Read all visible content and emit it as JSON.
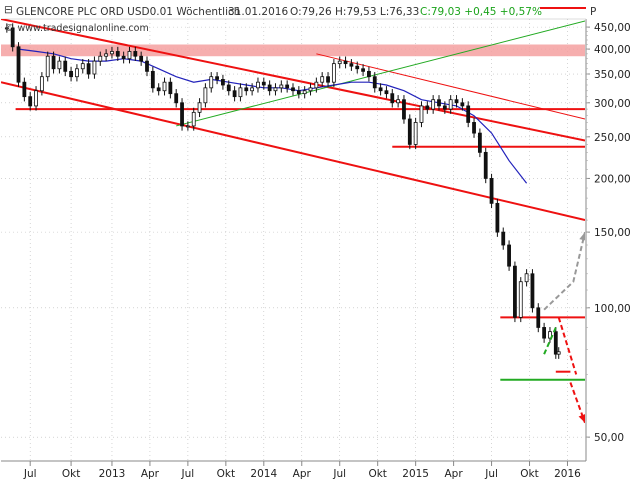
{
  "header": {
    "title": "GLENCORE PLC ORD USD0.01 Wöchentlich",
    "date": "31.01.2016",
    "ohlc": "O:79,26 H:79,53 L:76,33",
    "close_change": "C:79,03 +0,45 +0,57%",
    "scale_badge": "P"
  },
  "watermark": "© www.tradesignalonline.com",
  "colors": {
    "price": "#111111",
    "ma": "#2222bb",
    "trend_red": "#ee1111",
    "trend_green": "#22aa22",
    "band": "#f4a0a0",
    "grid": "#bbbbbb",
    "projection_grey": "#999999"
  },
  "chart_data": {
    "type": "candlestick",
    "scale": "log",
    "ylim": [
      44,
      470
    ],
    "y_ticks": [
      {
        "value": 450,
        "label": "450,00"
      },
      {
        "value": 400,
        "label": "400,00"
      },
      {
        "value": 350,
        "label": "350,00"
      },
      {
        "value": 300,
        "label": "300,00"
      },
      {
        "value": 250,
        "label": "250,00"
      },
      {
        "value": 200,
        "label": "200,00"
      },
      {
        "value": 150,
        "label": "150,00"
      },
      {
        "value": 100,
        "label": "100,00"
      },
      {
        "value": 50,
        "label": "50,00"
      }
    ],
    "x_ticks": [
      "Jul",
      "Okt",
      "2013",
      "Apr",
      "Jul",
      "Okt",
      "2014",
      "Apr",
      "Jul",
      "Okt",
      "2015",
      "Apr",
      "Jul",
      "Okt",
      "2016"
    ],
    "x_range": [
      0,
      200
    ],
    "x_tick_positions": [
      10,
      24,
      38,
      51,
      64,
      77,
      90,
      103,
      116,
      129,
      142,
      155,
      168,
      181,
      194
    ],
    "price": [
      [
        2,
        448
      ],
      [
        4,
        405
      ],
      [
        6,
        335
      ],
      [
        8,
        310
      ],
      [
        10,
        295
      ],
      [
        12,
        320
      ],
      [
        14,
        345
      ],
      [
        16,
        385
      ],
      [
        18,
        360
      ],
      [
        20,
        375
      ],
      [
        22,
        355
      ],
      [
        24,
        345
      ],
      [
        26,
        360
      ],
      [
        28,
        370
      ],
      [
        30,
        350
      ],
      [
        32,
        375
      ],
      [
        34,
        385
      ],
      [
        36,
        390
      ],
      [
        38,
        395
      ],
      [
        40,
        385
      ],
      [
        42,
        380
      ],
      [
        44,
        395
      ],
      [
        46,
        385
      ],
      [
        48,
        375
      ],
      [
        50,
        355
      ],
      [
        52,
        325
      ],
      [
        54,
        320
      ],
      [
        56,
        335
      ],
      [
        58,
        315
      ],
      [
        60,
        300
      ],
      [
        62,
        265
      ],
      [
        64,
        265
      ],
      [
        66,
        285
      ],
      [
        68,
        300
      ],
      [
        70,
        325
      ],
      [
        72,
        345
      ],
      [
        74,
        340
      ],
      [
        76,
        330
      ],
      [
        78,
        320
      ],
      [
        80,
        310
      ],
      [
        82,
        325
      ],
      [
        84,
        320
      ],
      [
        86,
        325
      ],
      [
        88,
        335
      ],
      [
        90,
        330
      ],
      [
        92,
        320
      ],
      [
        94,
        325
      ],
      [
        96,
        330
      ],
      [
        98,
        325
      ],
      [
        100,
        320
      ],
      [
        102,
        315
      ],
      [
        104,
        320
      ],
      [
        106,
        325
      ],
      [
        108,
        335
      ],
      [
        110,
        345
      ],
      [
        112,
        335
      ],
      [
        114,
        370
      ],
      [
        116,
        375
      ],
      [
        118,
        370
      ],
      [
        120,
        365
      ],
      [
        122,
        360
      ],
      [
        124,
        355
      ],
      [
        126,
        345
      ],
      [
        128,
        325
      ],
      [
        130,
        320
      ],
      [
        132,
        315
      ],
      [
        134,
        300
      ],
      [
        136,
        305
      ],
      [
        138,
        275
      ],
      [
        140,
        240
      ],
      [
        142,
        270
      ],
      [
        144,
        295
      ],
      [
        146,
        290
      ],
      [
        148,
        305
      ],
      [
        150,
        295
      ],
      [
        152,
        290
      ],
      [
        154,
        305
      ],
      [
        156,
        300
      ],
      [
        158,
        295
      ],
      [
        160,
        270
      ],
      [
        162,
        255
      ],
      [
        164,
        230
      ],
      [
        166,
        200
      ],
      [
        168,
        175
      ],
      [
        170,
        150
      ],
      [
        172,
        140
      ],
      [
        174,
        125
      ],
      [
        176,
        95
      ],
      [
        178,
        115
      ],
      [
        180,
        120
      ],
      [
        182,
        100
      ],
      [
        184,
        90
      ],
      [
        186,
        85
      ],
      [
        188,
        88
      ],
      [
        190,
        78
      ],
      [
        191,
        79
      ]
    ],
    "moving_average": [
      [
        6,
        400
      ],
      [
        12,
        395
      ],
      [
        18,
        390
      ],
      [
        24,
        380
      ],
      [
        30,
        375
      ],
      [
        36,
        375
      ],
      [
        42,
        380
      ],
      [
        48,
        375
      ],
      [
        54,
        360
      ],
      [
        60,
        345
      ],
      [
        66,
        335
      ],
      [
        72,
        340
      ],
      [
        78,
        335
      ],
      [
        84,
        330
      ],
      [
        90,
        325
      ],
      [
        96,
        325
      ],
      [
        102,
        320
      ],
      [
        108,
        325
      ],
      [
        114,
        330
      ],
      [
        120,
        335
      ],
      [
        126,
        335
      ],
      [
        132,
        330
      ],
      [
        138,
        320
      ],
      [
        144,
        305
      ],
      [
        150,
        300
      ],
      [
        156,
        295
      ],
      [
        162,
        280
      ],
      [
        168,
        255
      ],
      [
        174,
        220
      ],
      [
        180,
        195
      ]
    ],
    "resistance_band": {
      "low": 385,
      "high": 410,
      "x": [
        0,
        200
      ]
    },
    "trend_lines": [
      {
        "color": "red",
        "points": [
          [
            0,
            470
          ],
          [
            200,
            245
          ]
        ],
        "width": 2
      },
      {
        "color": "red",
        "points": [
          [
            0,
            335
          ],
          [
            200,
            160
          ]
        ],
        "width": 2
      },
      {
        "color": "red",
        "points": [
          [
            108,
            390
          ],
          [
            200,
            275
          ]
        ],
        "width": 1
      },
      {
        "color": "green",
        "points": [
          [
            60,
            265
          ],
          [
            200,
            465
          ]
        ],
        "width": 1
      }
    ],
    "horizontal_levels": [
      {
        "color": "red",
        "value": 290,
        "x": [
          5,
          200
        ]
      },
      {
        "color": "red",
        "value": 237,
        "x": [
          134,
          200
        ]
      },
      {
        "color": "red",
        "value": 95,
        "x": [
          171,
          200
        ]
      },
      {
        "color": "green",
        "value": 68,
        "x": [
          171,
          200
        ]
      }
    ],
    "projections": [
      {
        "color": "grey",
        "dashed": true,
        "points": [
          [
            186,
            99
          ],
          [
            196,
            115
          ],
          [
            200,
            150
          ]
        ],
        "arrow": true
      },
      {
        "color": "green",
        "dashed": true,
        "points": [
          [
            186,
            78
          ],
          [
            190,
            90
          ]
        ],
        "arrow": false
      },
      {
        "color": "red",
        "dashed": true,
        "points": [
          [
            191,
            95
          ],
          [
            197,
            70
          ]
        ],
        "arrow": false
      },
      {
        "color": "red",
        "dashed": false,
        "points": [
          [
            190,
            71
          ],
          [
            195,
            71
          ]
        ],
        "arrow": false
      },
      {
        "color": "red",
        "dashed": true,
        "points": [
          [
            195,
            67
          ],
          [
            200,
            54
          ]
        ],
        "arrow": true
      }
    ]
  }
}
